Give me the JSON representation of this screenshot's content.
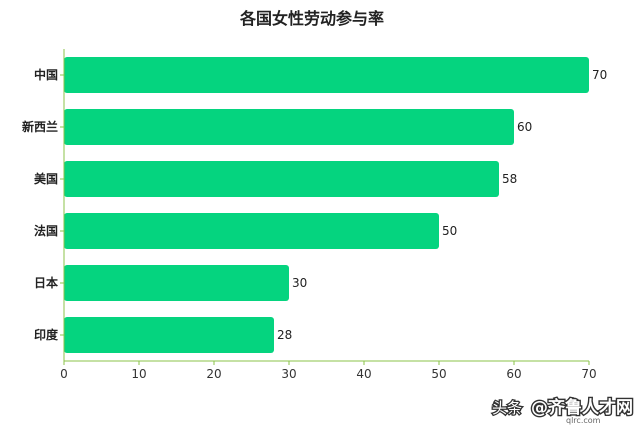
{
  "chart_data": {
    "type": "bar",
    "orientation": "horizontal",
    "title": "各国女性劳动参与率",
    "categories": [
      "中国",
      "新西兰",
      "美国",
      "法国",
      "日本",
      "印度"
    ],
    "values": [
      70,
      60,
      58,
      50,
      30,
      28
    ],
    "xlim": [
      0,
      70
    ],
    "xticks": [
      0,
      10,
      20,
      30,
      40,
      50,
      60,
      70
    ],
    "bar_color": "#05d47f",
    "axis_color": "#8bc34a",
    "grid": false,
    "data_labels": true
  },
  "watermark": {
    "source": "头条",
    "brand": "@齐鲁人才网",
    "url": "qlrc.com"
  }
}
